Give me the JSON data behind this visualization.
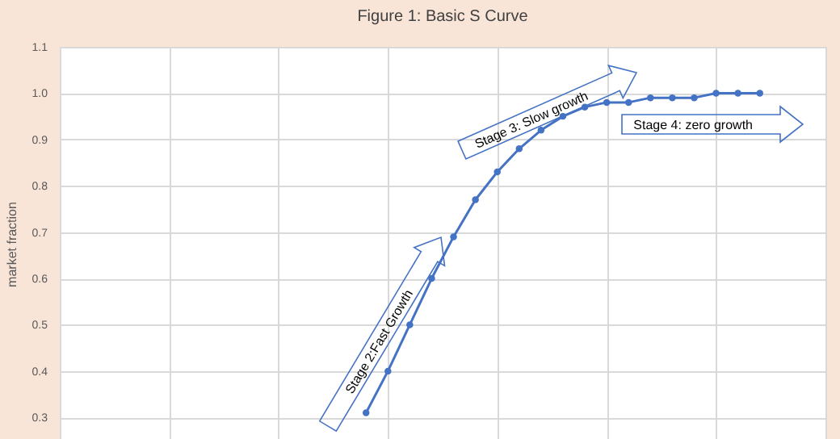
{
  "chart_data": {
    "type": "line",
    "title": "Figure 1: Basic S Curve",
    "ylabel": "market fraction",
    "categories": [
      null,
      null,
      null,
      null,
      null,
      null,
      null,
      null,
      null,
      null,
      null,
      null,
      null,
      null,
      null,
      null,
      null,
      null,
      null,
      null,
      null,
      null,
      null,
      null,
      null,
      null,
      null,
      null,
      null,
      null,
      null,
      null,
      null,
      null,
      null,
      null
    ],
    "series": [
      {
        "color": "#4472c4",
        "values": [
          null,
          null,
          null,
          null,
          null,
          null,
          null,
          null,
          null,
          null,
          null,
          null,
          null,
          null,
          0.31,
          0.4,
          0.5,
          0.6,
          0.69,
          0.77,
          0.83,
          0.88,
          0.92,
          0.95,
          0.97,
          0.98,
          0.98,
          0.99,
          0.99,
          0.99,
          1.0,
          1.0,
          1.0,
          null,
          null,
          null
        ]
      }
    ],
    "ylim": [
      0.25,
      1.1
    ],
    "yticks": [
      {
        "value": 0.3,
        "label": "0.3"
      },
      {
        "value": 0.4,
        "label": "0.4"
      },
      {
        "value": 0.5,
        "label": "0.5"
      },
      {
        "value": 0.6,
        "label": "0.6"
      },
      {
        "value": 0.7,
        "label": "0.7"
      },
      {
        "value": 0.8,
        "label": "0.8"
      },
      {
        "value": 0.9,
        "label": "0.9"
      },
      {
        "value": 1.0,
        "label": "1.0"
      },
      {
        "value": 1.1,
        "label": "1.1"
      }
    ],
    "tick_labels": "y",
    "grid": true,
    "marker": "circle",
    "line_style": "solid",
    "annotations": [
      "Stage 2:Fast Growth",
      "Stage 3: Slow growth",
      "Stage 4: zero growth"
    ]
  }
}
